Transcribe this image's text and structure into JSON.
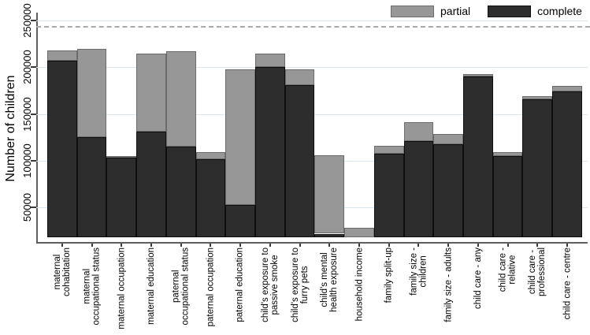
{
  "ylabel": "Number of children",
  "legend": {
    "items": [
      {
        "key": "partial",
        "label": "partial"
      },
      {
        "key": "complete",
        "label": "complete"
      }
    ]
  },
  "colors": {
    "complete_fill": "#2d2d2d",
    "complete_border": "#0e0e0e",
    "partial_fill": "#979797",
    "partial_border": "#6b6b6b",
    "grid": "#dbe7ee",
    "axis": "#5f5f5f",
    "reference_line": "#a9a9a9",
    "text": "#000000"
  },
  "chart_data": {
    "type": "bar",
    "stacked": true,
    "grid": true,
    "legend_position": "top-right",
    "title": "",
    "xlabel": "",
    "ylabel": "Number of children",
    "yticks": [
      50000,
      100000,
      150000,
      200000,
      250000
    ],
    "ylim": [
      0,
      260000
    ],
    "reference_line": {
      "value": 243000,
      "style": "dashed",
      "note": "horizontal dashed line near top"
    },
    "categories": [
      "maternal\ncohabitation",
      "maternal\noccupational status",
      "maternal occupation",
      "maternal education",
      "paternal\noccupational status",
      "paternal occupation",
      "paternal education",
      "child's exposure to\npassive smoke",
      "child's exposure to\nfurry pets",
      "child's mental\nhealth exposure",
      "household income",
      "family split-up",
      "family size -\nchildren",
      "family size - adults",
      "child care - any",
      "child care -\nrelative",
      "child care -\nprofessional",
      "child care - centre"
    ],
    "series": [
      {
        "name": "complete",
        "values": [
          207000,
          125000,
          103000,
          131000,
          115000,
          102000,
          53000,
          200000,
          181000,
          22000,
          0,
          108000,
          121000,
          118000,
          190000,
          105000,
          166000,
          174000
        ]
      },
      {
        "name": "partial",
        "values": [
          11000,
          95000,
          2000,
          84000,
          102000,
          7000,
          145000,
          15000,
          17000,
          84000,
          28000,
          8000,
          20000,
          11000,
          3000,
          4000,
          3000,
          6000
        ]
      }
    ]
  }
}
